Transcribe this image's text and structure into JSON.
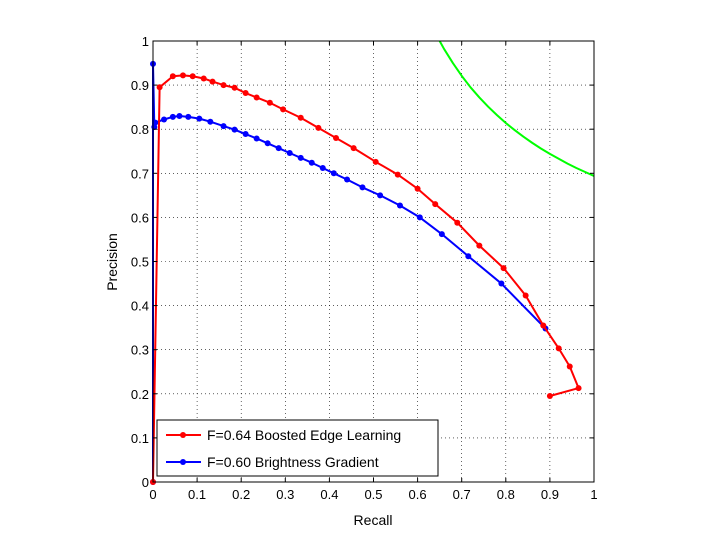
{
  "chart_data": {
    "type": "line",
    "title": "",
    "xlabel": "Recall",
    "ylabel": "Precision",
    "xlim": [
      0,
      1
    ],
    "ylim": [
      0,
      1
    ],
    "grid": true,
    "legend_position": "bottom-left",
    "x_ticks": [
      "0",
      "0.1",
      "0.2",
      "0.3",
      "0.4",
      "0.5",
      "0.6",
      "0.7",
      "0.8",
      "0.9",
      "1"
    ],
    "y_ticks": [
      "0",
      "0.1",
      "0.2",
      "0.3",
      "0.4",
      "0.5",
      "0.6",
      "0.7",
      "0.8",
      "0.9",
      "1"
    ],
    "series": [
      {
        "name": "F=0.64 Boosted Edge Learning",
        "color": "#ff0000",
        "marker": "dot",
        "x": [
          0.0,
          0.015,
          0.045,
          0.068,
          0.09,
          0.115,
          0.135,
          0.16,
          0.185,
          0.21,
          0.235,
          0.265,
          0.295,
          0.335,
          0.375,
          0.415,
          0.455,
          0.505,
          0.555,
          0.6,
          0.64,
          0.69,
          0.74,
          0.795,
          0.845,
          0.885,
          0.92,
          0.945,
          0.965,
          0.9
        ],
        "y": [
          0.0,
          0.895,
          0.92,
          0.922,
          0.92,
          0.915,
          0.908,
          0.9,
          0.894,
          0.882,
          0.872,
          0.86,
          0.845,
          0.826,
          0.803,
          0.78,
          0.757,
          0.726,
          0.697,
          0.665,
          0.63,
          0.588,
          0.536,
          0.485,
          0.423,
          0.355,
          0.303,
          0.262,
          0.213,
          0.195
        ]
      },
      {
        "name": "F=0.60 Brightness Gradient",
        "color": "#0000ff",
        "marker": "dot",
        "x": [
          0.0,
          0.0,
          0.003,
          0.005,
          0.025,
          0.045,
          0.06,
          0.08,
          0.105,
          0.13,
          0.16,
          0.185,
          0.21,
          0.235,
          0.26,
          0.285,
          0.31,
          0.335,
          0.36,
          0.385,
          0.41,
          0.44,
          0.475,
          0.515,
          0.56,
          0.605,
          0.655,
          0.715,
          0.79,
          0.89
        ],
        "y": [
          0.0,
          0.948,
          0.805,
          0.815,
          0.822,
          0.828,
          0.83,
          0.828,
          0.824,
          0.817,
          0.807,
          0.799,
          0.789,
          0.779,
          0.768,
          0.757,
          0.746,
          0.735,
          0.724,
          0.712,
          0.7,
          0.686,
          0.668,
          0.65,
          0.627,
          0.6,
          0.562,
          0.512,
          0.45,
          0.348
        ]
      },
      {
        "name": "",
        "color": "#00ff00",
        "marker": "none",
        "x": [
          0.65,
          0.66,
          0.68,
          0.7,
          0.72,
          0.74,
          0.76,
          0.78,
          0.8,
          0.82,
          0.84,
          0.86,
          0.88,
          0.9,
          0.92,
          0.94,
          0.96,
          0.98,
          1.0
        ],
        "y": [
          1.0,
          0.982,
          0.95,
          0.921,
          0.895,
          0.872,
          0.851,
          0.832,
          0.814,
          0.798,
          0.783,
          0.769,
          0.756,
          0.744,
          0.733,
          0.722,
          0.712,
          0.703,
          0.694
        ]
      }
    ]
  }
}
